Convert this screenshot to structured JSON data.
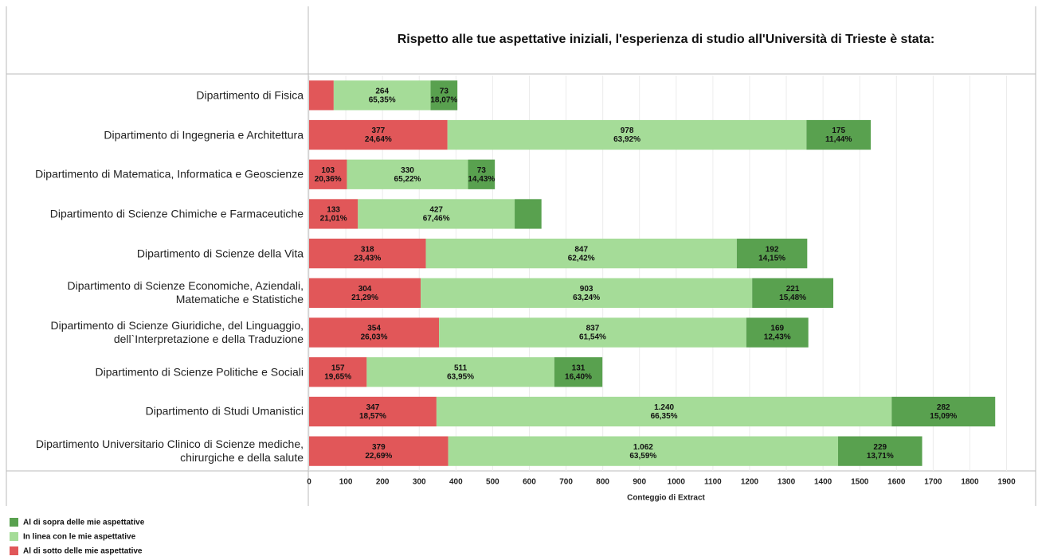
{
  "chart_data": {
    "type": "stacked_bar_horizontal",
    "title": "Rispetto alle tue aspettative iniziali, l'esperienza di studio all'Università di Trieste è stata:",
    "x_label": "Conteggio di Extract",
    "categories": [
      "Dipartimento di Fisica",
      "Dipartimento di Ingegneria e Architettura",
      "Dipartimento di Matematica, Informatica e Geoscienze",
      "Dipartimento di Scienze Chimiche e Farmaceutiche",
      "Dipartimento di Scienze della Vita",
      "Dipartimento di Scienze Economiche, Aziendali,\nMatematiche e Statistiche",
      "Dipartimento di Scienze Giuridiche, del Linguaggio,\ndell`Interpretazione e della Traduzione",
      "Dipartimento di Scienze Politiche e Sociali",
      "Dipartimento di Studi Umanistici",
      "Dipartimento Universitario Clinico di Scienze mediche,\nchirurgiche e della salute"
    ],
    "series": [
      {
        "name": "Al di sotto delle mie aspettative",
        "color": "#e15759",
        "values": [
          67,
          377,
          103,
          133,
          318,
          304,
          354,
          157,
          347,
          379
        ],
        "value_labels": [
          null,
          "377",
          "103",
          "133",
          "318",
          "304",
          "354",
          "157",
          "347",
          "379"
        ],
        "percent_labels": [
          null,
          "24,64%",
          "20,36%",
          "21,01%",
          "23,43%",
          "21,29%",
          "26,03%",
          "19,65%",
          "18,57%",
          "22,69%"
        ]
      },
      {
        "name": "In linea con le mie aspettative",
        "color": "#a5dc98",
        "values": [
          264,
          978,
          330,
          427,
          847,
          903,
          837,
          511,
          1240,
          1062
        ],
        "value_labels": [
          "264",
          "978",
          "330",
          "427",
          "847",
          "903",
          "837",
          "511",
          "1.240",
          "1.062"
        ],
        "percent_labels": [
          "65,35%",
          "63,92%",
          "65,22%",
          "67,46%",
          "62,42%",
          "63,24%",
          "61,54%",
          "63,95%",
          "66,35%",
          "63,59%"
        ]
      },
      {
        "name": "Al di sopra delle mie aspettative",
        "color": "#59a14f",
        "values": [
          73,
          175,
          73,
          73,
          192,
          221,
          169,
          131,
          282,
          229
        ],
        "value_labels": [
          "73",
          "175",
          "73",
          null,
          "192",
          "221",
          "169",
          "131",
          "282",
          "229"
        ],
        "percent_labels": [
          "18,07%",
          "11,44%",
          "14,43%",
          null,
          "14,15%",
          "15,48%",
          "12,43%",
          "16,40%",
          "15,09%",
          "13,71%"
        ]
      }
    ],
    "xlim": [
      0,
      1990
    ],
    "xticks": [
      0,
      100,
      200,
      300,
      400,
      500,
      600,
      700,
      800,
      900,
      1000,
      1100,
      1200,
      1300,
      1400,
      1500,
      1600,
      1700,
      1800,
      1900
    ],
    "grid": true
  }
}
